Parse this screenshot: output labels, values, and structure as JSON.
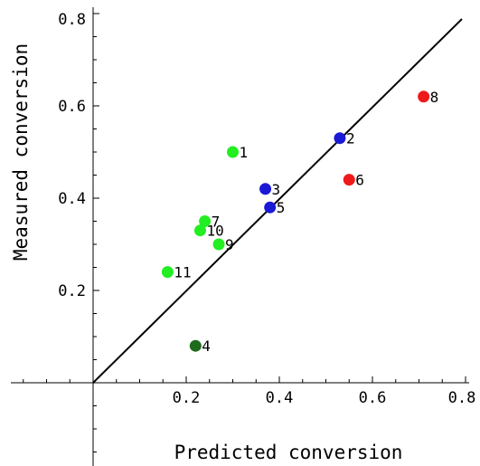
{
  "chart_data": {
    "type": "scatter",
    "xlabel": "Predicted conversion",
    "ylabel": "Measured conversion",
    "xlim": [
      -0.18,
      0.8
    ],
    "ylim": [
      -0.16,
      0.8
    ],
    "xticks": [
      {
        "value": 0.2,
        "label": "0.2"
      },
      {
        "value": 0.4,
        "label": "0.4"
      },
      {
        "value": 0.6,
        "label": "0.6"
      },
      {
        "value": 0.8,
        "label": "0.8"
      }
    ],
    "yticks": [
      {
        "value": 0.2,
        "label": "0.2"
      },
      {
        "value": 0.4,
        "label": "0.4"
      },
      {
        "value": 0.6,
        "label": "0.6"
      },
      {
        "value": 0.8,
        "label": "0.8"
      }
    ],
    "reference_line": {
      "from": [
        0,
        0
      ],
      "to": [
        0.8,
        0.8
      ],
      "color": "#000000"
    },
    "points": [
      {
        "label": "1",
        "x": 0.3,
        "y": 0.5,
        "color": "#22ee22"
      },
      {
        "label": "2",
        "x": 0.53,
        "y": 0.53,
        "color": "#1a1ad6"
      },
      {
        "label": "3",
        "x": 0.37,
        "y": 0.42,
        "color": "#1a1ad6"
      },
      {
        "label": "4",
        "x": 0.22,
        "y": 0.08,
        "color": "#1e6b1e"
      },
      {
        "label": "5",
        "x": 0.38,
        "y": 0.38,
        "color": "#1a1ad6"
      },
      {
        "label": "6",
        "x": 0.55,
        "y": 0.44,
        "color": "#ee1a1a"
      },
      {
        "label": "7",
        "x": 0.24,
        "y": 0.35,
        "color": "#22ee22"
      },
      {
        "label": "8",
        "x": 0.71,
        "y": 0.62,
        "color": "#ee1a1a"
      },
      {
        "label": "9",
        "x": 0.27,
        "y": 0.3,
        "color": "#22ee22"
      },
      {
        "label": "10",
        "x": 0.23,
        "y": 0.33,
        "color": "#22ee22"
      },
      {
        "label": "11",
        "x": 0.16,
        "y": 0.24,
        "color": "#22ee22"
      }
    ]
  }
}
